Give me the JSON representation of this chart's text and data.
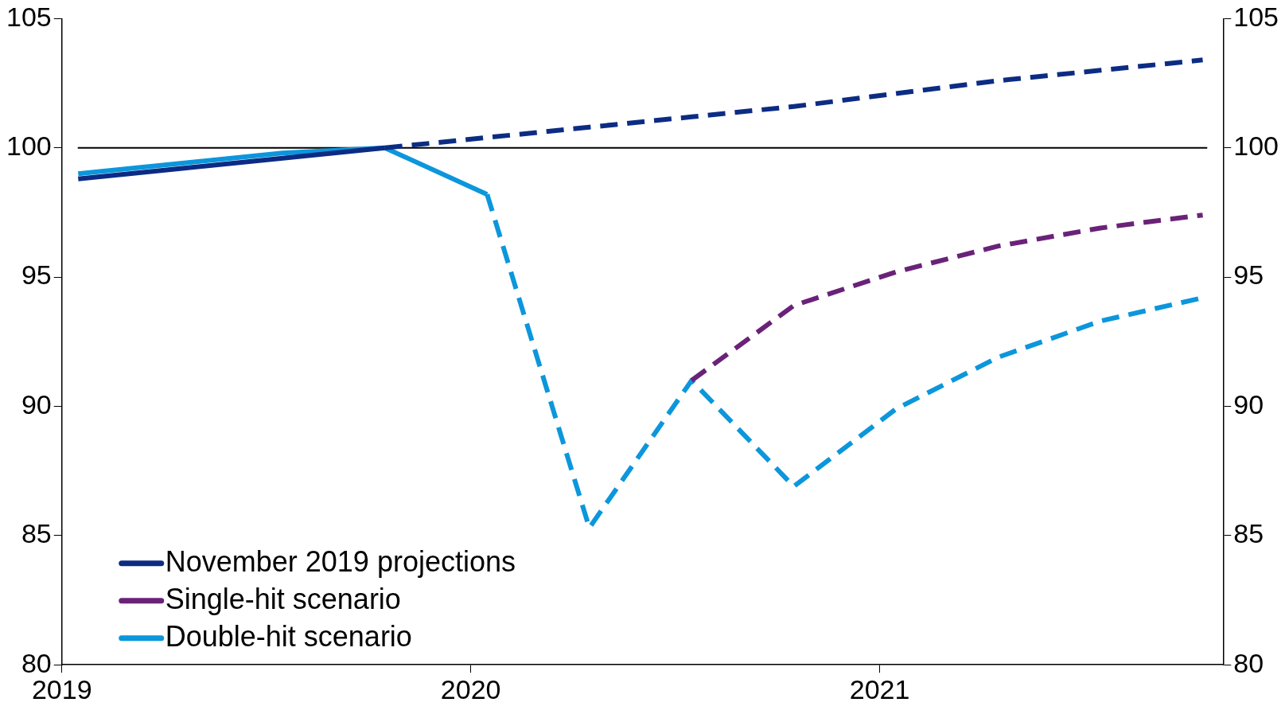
{
  "chart_data": {
    "type": "line",
    "series": [
      {
        "name": "November 2019 projections",
        "color": "#0c2c84",
        "line_style": "solid",
        "x": [
          2019.04,
          2019.29,
          2019.54,
          2019.79
        ],
        "values": [
          98.8,
          99.2,
          99.6,
          100.0
        ]
      },
      {
        "color": "#0c2c84",
        "line_style": "dashed",
        "x": [
          2019.79,
          2020.04,
          2020.29,
          2020.54,
          2020.79,
          2021.04,
          2021.29,
          2021.54,
          2021.79
        ],
        "values": [
          100.0,
          100.4,
          100.8,
          101.2,
          101.6,
          102.1,
          102.6,
          103.0,
          103.4
        ]
      },
      {
        "name": "Single-hit scenario",
        "color": "#6a2279",
        "line_style": "dashed",
        "x": [
          2020.54,
          2020.79,
          2021.04,
          2021.29,
          2021.54,
          2021.79
        ],
        "values": [
          91.0,
          93.9,
          95.2,
          96.2,
          96.9,
          97.4
        ]
      },
      {
        "name": "Double-hit scenario",
        "color": "#0c96dc",
        "line_style": "solid",
        "x": [
          2019.04,
          2019.29,
          2019.54,
          2019.79,
          2020.04
        ],
        "values": [
          99.0,
          99.4,
          99.8,
          100.0,
          98.2
        ]
      },
      {
        "color": "#0c96dc",
        "line_style": "dashed",
        "x": [
          2020.04,
          2020.29,
          2020.54,
          2020.79,
          2021.04,
          2021.29,
          2021.54,
          2021.79
        ],
        "values": [
          98.2,
          85.3,
          91.0,
          86.9,
          89.9,
          91.9,
          93.3,
          94.2
        ]
      }
    ],
    "xlim": [
      2019,
      2021.84
    ],
    "xticks": [
      2019,
      2020,
      2021
    ],
    "ylim": [
      80,
      105
    ],
    "yticks": [
      80,
      85,
      90,
      95,
      100,
      105
    ],
    "y2lim": [
      80,
      105
    ],
    "y2ticks": [
      80,
      85,
      90,
      95,
      100,
      105
    ],
    "ref_lines": [
      {
        "axis": "y",
        "value": 100,
        "color": "#000000"
      }
    ],
    "grid": false,
    "legend": "bottom left",
    "marker": "none"
  }
}
